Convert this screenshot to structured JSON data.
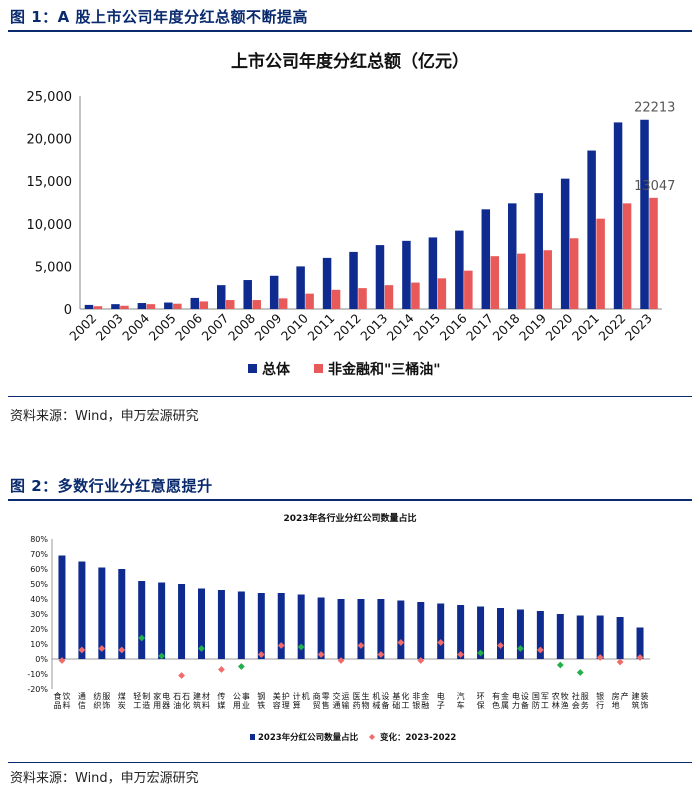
{
  "figure1": {
    "heading": "图 1：A 股上市公司年度分红总额不断提高",
    "source": "资料来源：Wind，申万宏源研究"
  },
  "figure2": {
    "heading": "图 2：多数行业分红意愿提升",
    "source": "资料来源：Wind，申万宏源研究"
  },
  "colors": {
    "navy": "#0f2b8f",
    "red": "#e85a5a",
    "green": "#22b04b",
    "diamond_red": "#f26b6b",
    "rule": "#0a2a6e"
  },
  "chart_data": [
    {
      "type": "bar",
      "title": "上市公司年度分红总额（亿元）",
      "xlabel": "",
      "ylabel": "",
      "categories": [
        "2002",
        "2003",
        "2004",
        "2005",
        "2006",
        "2007",
        "2008",
        "2009",
        "2010",
        "2011",
        "2012",
        "2013",
        "2014",
        "2015",
        "2016",
        "2017",
        "2018",
        "2019",
        "2020",
        "2021",
        "2022",
        "2023"
      ],
      "series": [
        {
          "name": "总体",
          "color": "#0f2b8f",
          "values": [
            480,
            570,
            700,
            760,
            1300,
            2800,
            3400,
            3900,
            5000,
            6000,
            6700,
            7500,
            8000,
            8400,
            9200,
            11700,
            12400,
            13600,
            15300,
            18600,
            21900,
            22213
          ]
        },
        {
          "name": "非金融和\"三桶油\"",
          "color": "#e85a5a",
          "values": [
            330,
            380,
            570,
            620,
            890,
            1050,
            1050,
            1250,
            1800,
            2250,
            2450,
            2800,
            3100,
            3600,
            4500,
            6200,
            6500,
            6900,
            8300,
            10600,
            12400,
            13047
          ]
        }
      ],
      "ylim": [
        0,
        25000
      ],
      "yticks": [
        "0",
        "5,000",
        "10,000",
        "15,000",
        "20,000",
        "25,000"
      ],
      "data_labels": [
        {
          "series": 0,
          "index": 21,
          "text": "22213"
        },
        {
          "series": 1,
          "index": 21,
          "text": "13047"
        }
      ],
      "grid": false,
      "legend": "bottom"
    },
    {
      "type": "bar",
      "title": "2023年各行业分红公司数量占比",
      "xlabel": "",
      "ylabel": "",
      "categories": [
        "食品饮料",
        "通信",
        "纺织服饰",
        "煤炭",
        "轻工制造",
        "家用电器",
        "石油石化",
        "建筑材料",
        "传媒",
        "公用事业",
        "钢铁",
        "美容护理",
        "计算机",
        "商贸零售",
        "交通运输",
        "医药生物",
        "机械设备",
        "基础化工",
        "非银金融",
        "电子",
        "汽车",
        "环保",
        "有色金属",
        "电力设备",
        "国防军工",
        "农林牧渔",
        "社会服务",
        "银行",
        "房地产",
        "建筑装饰"
      ],
      "series": [
        {
          "name": "2023年分红公司数量占比",
          "color": "#0f2b8f",
          "kind": "bar",
          "values": [
            0.69,
            0.65,
            0.61,
            0.6,
            0.52,
            0.51,
            0.5,
            0.47,
            0.46,
            0.45,
            0.44,
            0.44,
            0.43,
            0.41,
            0.4,
            0.4,
            0.4,
            0.39,
            0.38,
            0.37,
            0.36,
            0.35,
            0.34,
            0.33,
            0.32,
            0.3,
            0.29,
            0.29,
            0.28,
            0.21
          ]
        },
        {
          "name": "变化：2023-2022",
          "kind": "diamond",
          "values": [
            -0.01,
            0.06,
            0.07,
            0.06,
            0.14,
            0.02,
            -0.11,
            0.07,
            -0.07,
            -0.05,
            0.03,
            0.09,
            0.08,
            0.03,
            -0.01,
            0.09,
            0.03,
            0.11,
            -0.01,
            0.11,
            0.03,
            0.04,
            0.09,
            0.07,
            0.06,
            -0.04,
            -0.09,
            0.01,
            -0.02,
            0.01
          ],
          "colors": [
            "#f26b6b",
            "#f26b6b",
            "#f26b6b",
            "#f26b6b",
            "#22b04b",
            "#22b04b",
            "#f26b6b",
            "#22b04b",
            "#f26b6b",
            "#22b04b",
            "#f26b6b",
            "#f26b6b",
            "#22b04b",
            "#f26b6b",
            "#f26b6b",
            "#f26b6b",
            "#f26b6b",
            "#f26b6b",
            "#f26b6b",
            "#f26b6b",
            "#f26b6b",
            "#22b04b",
            "#f26b6b",
            "#22b04b",
            "#f26b6b",
            "#22b04b",
            "#22b04b",
            "#f26b6b",
            "#f26b6b",
            "#f26b6b"
          ]
        }
      ],
      "ylim": [
        -0.2,
        0.8
      ],
      "yticks": [
        "80%",
        "70%",
        "60%",
        "50%",
        "40%",
        "30%",
        "20%",
        "10%",
        "0%",
        "-10%",
        "-20%"
      ],
      "legend": "bottom"
    }
  ]
}
